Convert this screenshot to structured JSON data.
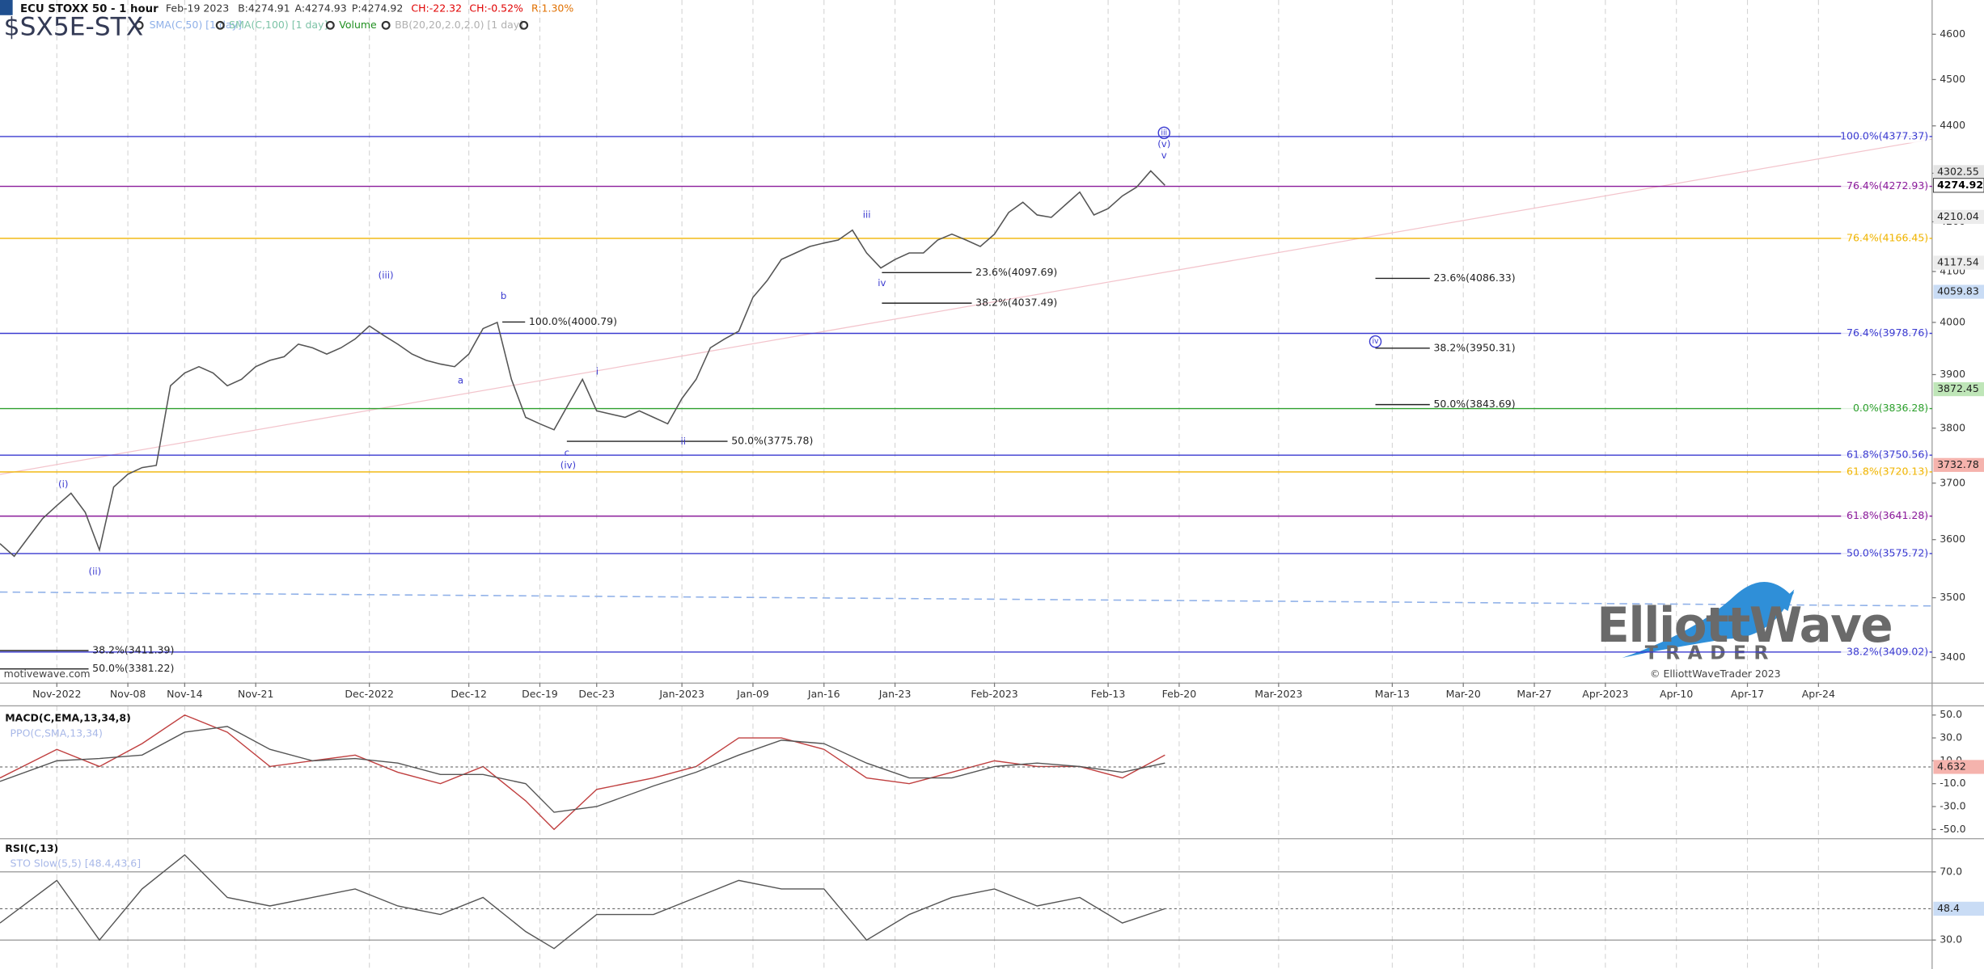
{
  "chart_data": [
    {
      "type": "line",
      "title": "ECU STOXX 50 - 1 hour",
      "symbol": "$SX5E-STX",
      "date": "Feb-19 2023",
      "quote": [
        {
          "text": "B:4274.91",
          "color": "#333333"
        },
        {
          "text": "A:4274.93",
          "color": "#333333"
        },
        {
          "text": "P:4274.92",
          "color": "#333333"
        },
        {
          "text": "CH:-22.32",
          "color": "#e00000"
        },
        {
          "text": "CH:-0.52%",
          "color": "#e00000"
        },
        {
          "text": "R:1.30%",
          "color": "#e07000"
        }
      ],
      "indicators": [
        {
          "text": "SMA(C,50) [1 day]",
          "color": "#8fb0e8"
        },
        {
          "text": "SMA(C,100) [1 day]",
          "color": "#7cc3a6"
        },
        {
          "text": "Volume",
          "color": "#1f8f1f"
        },
        {
          "text": "BB(20,20,2.0,2.0) [1 day]",
          "color": "#b0b0b0"
        }
      ],
      "source": "motivewave.com",
      "copyright": "© ElliottWaveTrader 2023",
      "logo": [
        "ElliottWave",
        "TRADER"
      ],
      "color": "#555555",
      "log_scale": true,
      "grid": "x",
      "xlim": [
        "2022-10-26",
        "2023-05-04"
      ],
      "ylim": [
        3358,
        4677
      ],
      "yticks": [
        3400,
        3500,
        3600,
        3700,
        3800,
        3900,
        4000,
        4100,
        4200,
        4300,
        4400,
        4500,
        4600
      ],
      "xticks": [
        {
          "value": "2022-11-01",
          "label": "Nov-2022"
        },
        {
          "value": "2022-11-08",
          "label": "Nov-08"
        },
        {
          "value": "2022-11-14",
          "label": "Nov-14"
        },
        {
          "value": "2022-11-21",
          "label": "Nov-21"
        },
        {
          "value": "2022-12-01",
          "label": "Dec-2022"
        },
        {
          "value": "2022-12-12",
          "label": "Dec-12"
        },
        {
          "value": "2022-12-19",
          "label": "Dec-19"
        },
        {
          "value": "2022-12-23",
          "label": "Dec-23"
        },
        {
          "value": "2023-01-02",
          "label": "Jan-2023"
        },
        {
          "value": "2023-01-09",
          "label": "Jan-09"
        },
        {
          "value": "2023-01-16",
          "label": "Jan-16"
        },
        {
          "value": "2023-01-23",
          "label": "Jan-23"
        },
        {
          "value": "2023-02-01",
          "label": "Feb-2023"
        },
        {
          "value": "2023-02-13",
          "label": "Feb-13"
        },
        {
          "value": "2023-02-20",
          "label": "Feb-20"
        },
        {
          "value": "2023-03-01",
          "label": "Mar-2023"
        },
        {
          "value": "2023-03-13",
          "label": "Mar-13"
        },
        {
          "value": "2023-03-20",
          "label": "Mar-20"
        },
        {
          "value": "2023-03-27",
          "label": "Mar-27"
        },
        {
          "value": "2023-04-03",
          "label": "Apr-2023"
        },
        {
          "value": "2023-04-10",
          "label": "Apr-10"
        },
        {
          "value": "2023-04-17",
          "label": "Apr-17"
        },
        {
          "value": "2023-04-24",
          "label": "Apr-24"
        }
      ],
      "x": [
        "2022-10-26",
        "2022-10-27",
        "2022-10-28",
        "2022-10-31",
        "2022-11-01",
        "2022-11-02",
        "2022-11-03",
        "2022-11-04",
        "2022-11-07",
        "2022-11-08",
        "2022-11-09",
        "2022-11-10",
        "2022-11-11",
        "2022-11-14",
        "2022-11-15",
        "2022-11-16",
        "2022-11-17",
        "2022-11-18",
        "2022-11-21",
        "2022-11-22",
        "2022-11-23",
        "2022-11-24",
        "2022-11-25",
        "2022-11-28",
        "2022-11-29",
        "2022-11-30",
        "2022-12-01",
        "2022-12-02",
        "2022-12-05",
        "2022-12-06",
        "2022-12-07",
        "2022-12-08",
        "2022-12-09",
        "2022-12-12",
        "2022-12-13",
        "2022-12-14",
        "2022-12-15",
        "2022-12-16",
        "2022-12-19",
        "2022-12-20",
        "2022-12-21",
        "2022-12-22",
        "2022-12-23",
        "2022-12-27",
        "2022-12-28",
        "2022-12-29",
        "2022-12-30",
        "2023-01-02",
        "2023-01-03",
        "2023-01-04",
        "2023-01-05",
        "2023-01-06",
        "2023-01-09",
        "2023-01-10",
        "2023-01-11",
        "2023-01-12",
        "2023-01-13",
        "2023-01-16",
        "2023-01-17",
        "2023-01-18",
        "2023-01-19",
        "2023-01-20",
        "2023-01-23",
        "2023-01-24",
        "2023-01-25",
        "2023-01-26",
        "2023-01-27",
        "2023-01-30",
        "2023-01-31",
        "2023-02-01",
        "2023-02-02",
        "2023-02-03",
        "2023-02-06",
        "2023-02-07",
        "2023-02-08",
        "2023-02-09",
        "2023-02-10",
        "2023-02-13",
        "2023-02-14",
        "2023-02-15",
        "2023-02-16",
        "2023-02-17"
      ],
      "values": [
        3593,
        3571,
        3604,
        3637,
        3660,
        3682,
        3648,
        3582,
        3693,
        3716,
        3728,
        3732,
        3879,
        3903,
        3915,
        3903,
        3879,
        3891,
        3915,
        3927,
        3934,
        3958,
        3951,
        3939,
        3951,
        3968,
        3993,
        3975,
        3958,
        3939,
        3927,
        3920,
        3915,
        3939,
        3988,
        4000,
        3891,
        3820,
        3808,
        3797,
        3844,
        3891,
        3832,
        3820,
        3832,
        3820,
        3808,
        3855,
        3891,
        3951,
        3968,
        3983,
        4049,
        4082,
        4124,
        4137,
        4150,
        4157,
        4163,
        4183,
        4137,
        4107,
        4124,
        4137,
        4137,
        4163,
        4175,
        4163,
        4150,
        4175,
        4219,
        4240,
        4214,
        4209,
        4235,
        4261,
        4214,
        4227,
        4253,
        4271,
        4305,
        4274.92
      ],
      "levels": [
        {
          "value": 4377.37,
          "label": "100.0%(4377.37)",
          "color": "#3a3ad0"
        },
        {
          "value": 4272.93,
          "label": "76.4%(4272.93)",
          "color": "#8a1a9a"
        },
        {
          "value": 4166.45,
          "label": "76.4%(4166.45)",
          "color": "#f0b400"
        },
        {
          "value": 3978.76,
          "label": "76.4%(3978.76)",
          "color": "#3a3ad0"
        },
        {
          "value": 3836.28,
          "label": "0.0%(3836.28)",
          "color": "#2ea02e"
        },
        {
          "value": 3750.56,
          "label": "61.8%(3750.56)",
          "color": "#3a3ad0"
        },
        {
          "value": 3720.13,
          "label": "61.8%(3720.13)",
          "color": "#f0b400"
        },
        {
          "value": 3641.28,
          "label": "61.8%(3641.28)",
          "color": "#8a1a9a"
        },
        {
          "value": 3575.72,
          "label": "50.0%(3575.72)",
          "color": "#3a3ad0"
        },
        {
          "value": 3409.02,
          "label": "38.2%(3409.02)",
          "color": "#3a3ad0"
        }
      ],
      "segments": [
        {
          "value": 4000.79,
          "label": "100.0%(4000.79)"
        },
        {
          "value": 3775.78,
          "label": "50.0%(3775.78)"
        },
        {
          "value": 4097.69,
          "label": "23.6%(4097.69)"
        },
        {
          "value": 4037.49,
          "label": "38.2%(4037.49)"
        },
        {
          "value": 4086.33,
          "label": "23.6%(4086.33)"
        },
        {
          "value": 3950.31,
          "label": "38.2%(3950.31)"
        },
        {
          "value": 3843.69,
          "label": "50.0%(3843.69)"
        },
        {
          "value": 3411.39,
          "label": "38.2%(3411.39)"
        },
        {
          "value": 3381.22,
          "label": "50.0%(3381.22)"
        }
      ],
      "wave_labels": [
        "(i)",
        "(ii)",
        "(iii)",
        "a",
        "b",
        "c",
        "(iv)",
        "i",
        "ii",
        "iii",
        "iv",
        "v",
        "(v)",
        "iii",
        "iv"
      ],
      "price_markers": [
        {
          "value": 4302.55,
          "color": "#e4e4e4"
        },
        {
          "value": 4210.04,
          "color": "#ececec"
        },
        {
          "value": 4117.54,
          "color": "#ececec"
        },
        {
          "value": 4059.83,
          "color": "#c9dcf5"
        },
        {
          "value": 3872.45,
          "color": "#bfe6b8"
        },
        {
          "value": 3732.78,
          "color": "#f5b3ad"
        }
      ]
    },
    {
      "type": "line",
      "title": "MACD(C,EMA,13,34,8)",
      "subtitle": "PPO(C,SMA,13,34)",
      "xlim": [
        "2022-10-26",
        "2023-05-04"
      ],
      "ylim": [
        -57,
        58
      ],
      "yticks": [
        {
          "value": 50,
          "label": "50.0"
        },
        {
          "value": 30,
          "label": "30.0"
        },
        {
          "value": 10,
          "label": "10.0"
        },
        {
          "value": -10,
          "label": "-10.0"
        },
        {
          "value": -30,
          "label": "-30.0"
        },
        {
          "value": -50,
          "label": "-50.0"
        }
      ],
      "x": [
        "2022-10-26",
        "2022-11-01",
        "2022-11-04",
        "2022-11-09",
        "2022-11-14",
        "2022-11-17",
        "2022-11-22",
        "2022-11-25",
        "2022-11-30",
        "2022-12-05",
        "2022-12-08",
        "2022-12-13",
        "2022-12-16",
        "2022-12-20",
        "2022-12-23",
        "2022-12-29",
        "2023-01-03",
        "2023-01-06",
        "2023-01-11",
        "2023-01-16",
        "2023-01-19",
        "2023-01-24",
        "2023-01-27",
        "2023-02-01",
        "2023-02-06",
        "2023-02-09",
        "2023-02-14",
        "2023-02-17"
      ],
      "series": [
        {
          "color": "#c04040",
          "values": [
            -5,
            20,
            5,
            25,
            50,
            35,
            5,
            10,
            15,
            0,
            -10,
            5,
            -25,
            -50,
            -15,
            -5,
            5,
            30,
            30,
            20,
            -5,
            -10,
            0,
            10,
            5,
            5,
            -5,
            15
          ]
        },
        {
          "color": "#555555",
          "values": [
            -8,
            10,
            12,
            15,
            35,
            40,
            20,
            10,
            12,
            8,
            -2,
            -2,
            -10,
            -35,
            -30,
            -12,
            0,
            15,
            28,
            25,
            8,
            -5,
            -5,
            5,
            8,
            5,
            0,
            8
          ]
        }
      ],
      "markers": [
        {
          "value": 4.632,
          "color": "#f5b3ad"
        }
      ]
    },
    {
      "type": "line",
      "title": "RSI(C,13)",
      "subtitle": "STO Slow(5,5) [48.4,43.6]",
      "xlim": [
        "2022-10-26",
        "2023-05-04"
      ],
      "ylim": [
        13,
        88
      ],
      "yticks": [
        {
          "value": 70,
          "label": "70.0"
        },
        {
          "value": 30,
          "label": "30.0"
        }
      ],
      "x": [
        "2022-10-26",
        "2022-11-01",
        "2022-11-04",
        "2022-11-09",
        "2022-11-14",
        "2022-11-17",
        "2022-11-22",
        "2022-11-25",
        "2022-11-30",
        "2022-12-05",
        "2022-12-08",
        "2022-12-13",
        "2022-12-16",
        "2022-12-20",
        "2022-12-23",
        "2022-12-29",
        "2023-01-03",
        "2023-01-06",
        "2023-01-11",
        "2023-01-16",
        "2023-01-19",
        "2023-01-24",
        "2023-01-27",
        "2023-02-01",
        "2023-02-06",
        "2023-02-09",
        "2023-02-14",
        "2023-02-17"
      ],
      "series": [
        {
          "color": "#555555",
          "values": [
            40,
            65,
            30,
            60,
            80,
            55,
            50,
            55,
            60,
            50,
            45,
            55,
            35,
            25,
            45,
            45,
            55,
            65,
            60,
            60,
            30,
            45,
            55,
            60,
            50,
            55,
            40,
            48.4
          ]
        }
      ]
    }
  ]
}
